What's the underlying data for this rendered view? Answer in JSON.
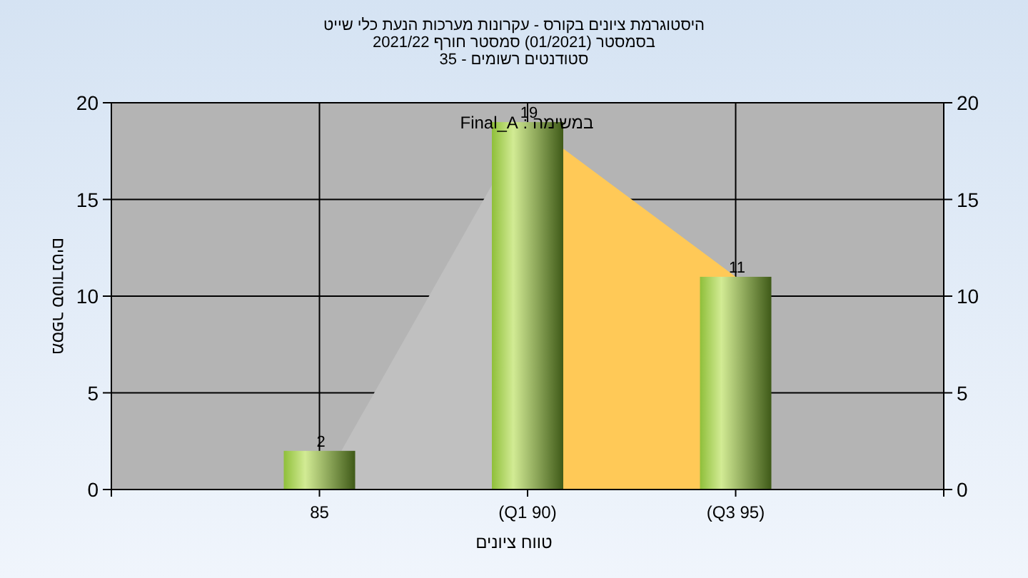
{
  "chart_data": {
    "type": "bar",
    "title": "היסטוגרמת ציונים בקורס - עקרונות מערכות הנעת כלי שייט",
    "subtitle": "בסמסטר  (01/2021)  סמסטר חורף 2021/22\nסטודנטים רשומים - 35",
    "annotations": [
      "במשימה : Final_A"
    ],
    "xlabel": "טווח ציונים",
    "ylabel": "מספר סטודנטים",
    "categories": [
      "85",
      "(Q1 90)",
      "(Q3 95)"
    ],
    "series": [
      {
        "type": "area",
        "x": [
          "85",
          "(Q1 90)"
        ],
        "values": [
          0,
          19
        ],
        "color": "#c0c0c0"
      },
      {
        "type": "area",
        "x": [
          "(Q1 90)",
          "(Q3 95)"
        ],
        "values": [
          19,
          11
        ],
        "color": "#ffc957"
      },
      {
        "values": [
          2,
          19,
          11
        ],
        "color": "#8fbf3a",
        "value_labels": [
          "2",
          "19",
          "11"
        ]
      }
    ],
    "ylim": [
      0,
      20
    ],
    "yticks": [
      0,
      5,
      10,
      15,
      20
    ],
    "y2lim": [
      0,
      20
    ],
    "y2ticks": [
      0,
      5,
      10,
      15,
      20
    ],
    "grid": true
  }
}
